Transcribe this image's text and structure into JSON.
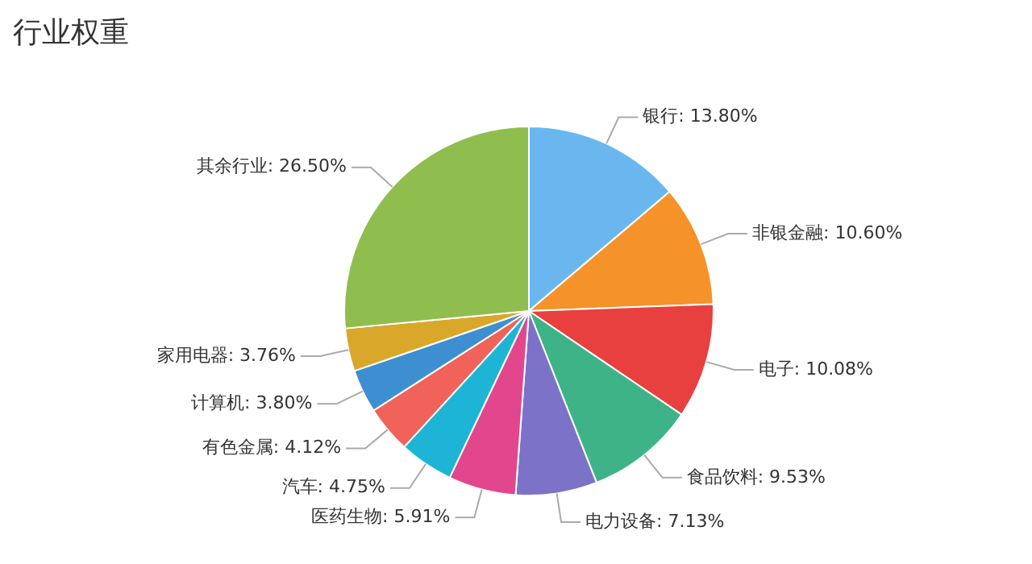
{
  "chart_data": {
    "type": "pie",
    "title": "行业权重",
    "categories": [
      "银行",
      "非银金融",
      "电子",
      "食品饮料",
      "电力设备",
      "医药生物",
      "汽车",
      "有色金属",
      "计算机",
      "家用电器",
      "其余行业"
    ],
    "values": [
      13.8,
      10.6,
      10.08,
      9.53,
      7.13,
      5.91,
      4.75,
      4.12,
      3.8,
      3.76,
      26.5
    ],
    "value_labels": [
      "13.80%",
      "10.60%",
      "10.08%",
      "9.53%",
      "7.13%",
      "5.91%",
      "4.75%",
      "4.12%",
      "3.80%",
      "3.76%",
      "26.50%"
    ],
    "colors": [
      "#6ab7f0",
      "#f5922a",
      "#e8403f",
      "#3db387",
      "#7c73c8",
      "#e2478d",
      "#1eb4d6",
      "#f0625a",
      "#3d8fd1",
      "#d9a72a",
      "#8fbe4f"
    ],
    "legend": false
  }
}
